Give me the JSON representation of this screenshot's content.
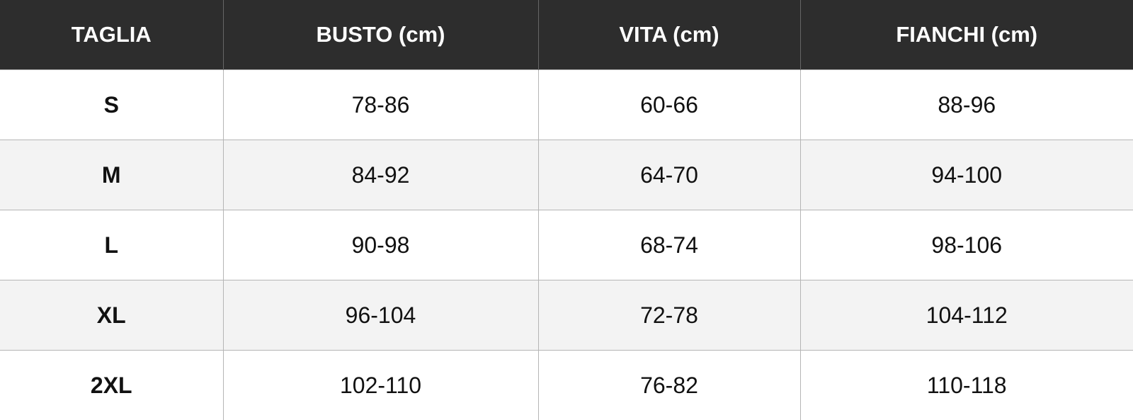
{
  "table": {
    "header": [
      "TAGLIA",
      "BUSTO (cm)",
      "VITA (cm)",
      "FIANCHI (cm)"
    ],
    "rows": [
      [
        "S",
        "78-86",
        "60-66",
        "88-96"
      ],
      [
        "M",
        "84-92",
        "64-70",
        "94-100"
      ],
      [
        "L",
        "90-98",
        "68-74",
        "98-106"
      ],
      [
        "XL",
        "96-104",
        "72-78",
        "104-112"
      ],
      [
        "2XL",
        "102-110",
        "76-82",
        "110-118"
      ]
    ]
  }
}
